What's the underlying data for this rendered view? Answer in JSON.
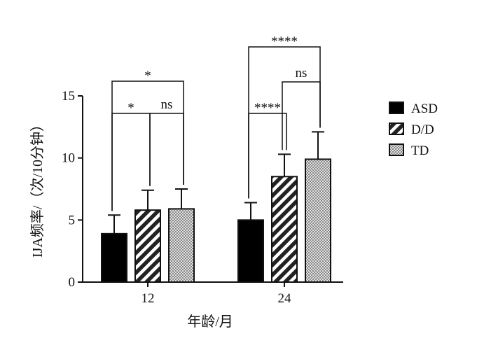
{
  "chart_data": {
    "type": "bar",
    "categories": [
      "12",
      "24"
    ],
    "xlabel": "年龄/月",
    "ylabel": "IJA频率/（次/10分钟）",
    "ylim": [
      0,
      15
    ],
    "yticks": [
      0,
      5,
      10,
      15
    ],
    "legend_position": "right",
    "series": [
      {
        "name": "ASD",
        "values": [
          3.9,
          5.0
        ],
        "errors": [
          1.5,
          1.4
        ],
        "pattern": "solid-black"
      },
      {
        "name": "D/D",
        "values": [
          5.8,
          8.5
        ],
        "errors": [
          1.6,
          1.8
        ],
        "pattern": "diagonal-stripes"
      },
      {
        "name": "TD",
        "values": [
          5.9,
          9.9
        ],
        "errors": [
          1.6,
          2.2
        ],
        "pattern": "dotted-gray"
      }
    ],
    "annotations": [
      {
        "group": "12",
        "from": "ASD",
        "to": "D/D",
        "label": "*"
      },
      {
        "group": "12",
        "from": "D/D",
        "to": "TD",
        "label": "ns"
      },
      {
        "group": "12",
        "from": "ASD",
        "to": "TD",
        "label": "*"
      },
      {
        "group": "24",
        "from": "ASD",
        "to": "D/D",
        "label": "****"
      },
      {
        "group": "24",
        "from": "D/D",
        "to": "TD",
        "label": "ns"
      },
      {
        "group": "24",
        "from": "ASD",
        "to": "TD",
        "label": "****"
      }
    ]
  }
}
